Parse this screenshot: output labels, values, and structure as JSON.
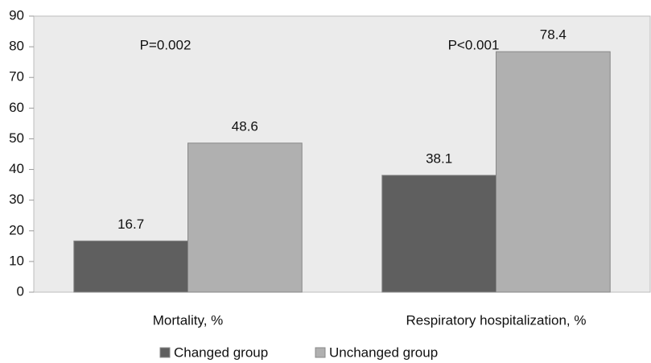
{
  "chart_data": {
    "type": "bar",
    "categories": [
      "Mortality, %",
      "Respiratory hospitalization, %"
    ],
    "series": [
      {
        "name": "Changed group",
        "color": "#5f5f5f",
        "values": [
          16.7,
          38.1
        ]
      },
      {
        "name": "Unchanged group",
        "color": "#b0b0b0",
        "values": [
          48.6,
          78.4
        ]
      }
    ],
    "annotations": [
      "P=0.002",
      "P<0.001"
    ],
    "ylim": [
      0,
      90
    ],
    "yticks": [
      0,
      10,
      20,
      30,
      40,
      50,
      60,
      70,
      80,
      90
    ],
    "legend": "bottom"
  }
}
